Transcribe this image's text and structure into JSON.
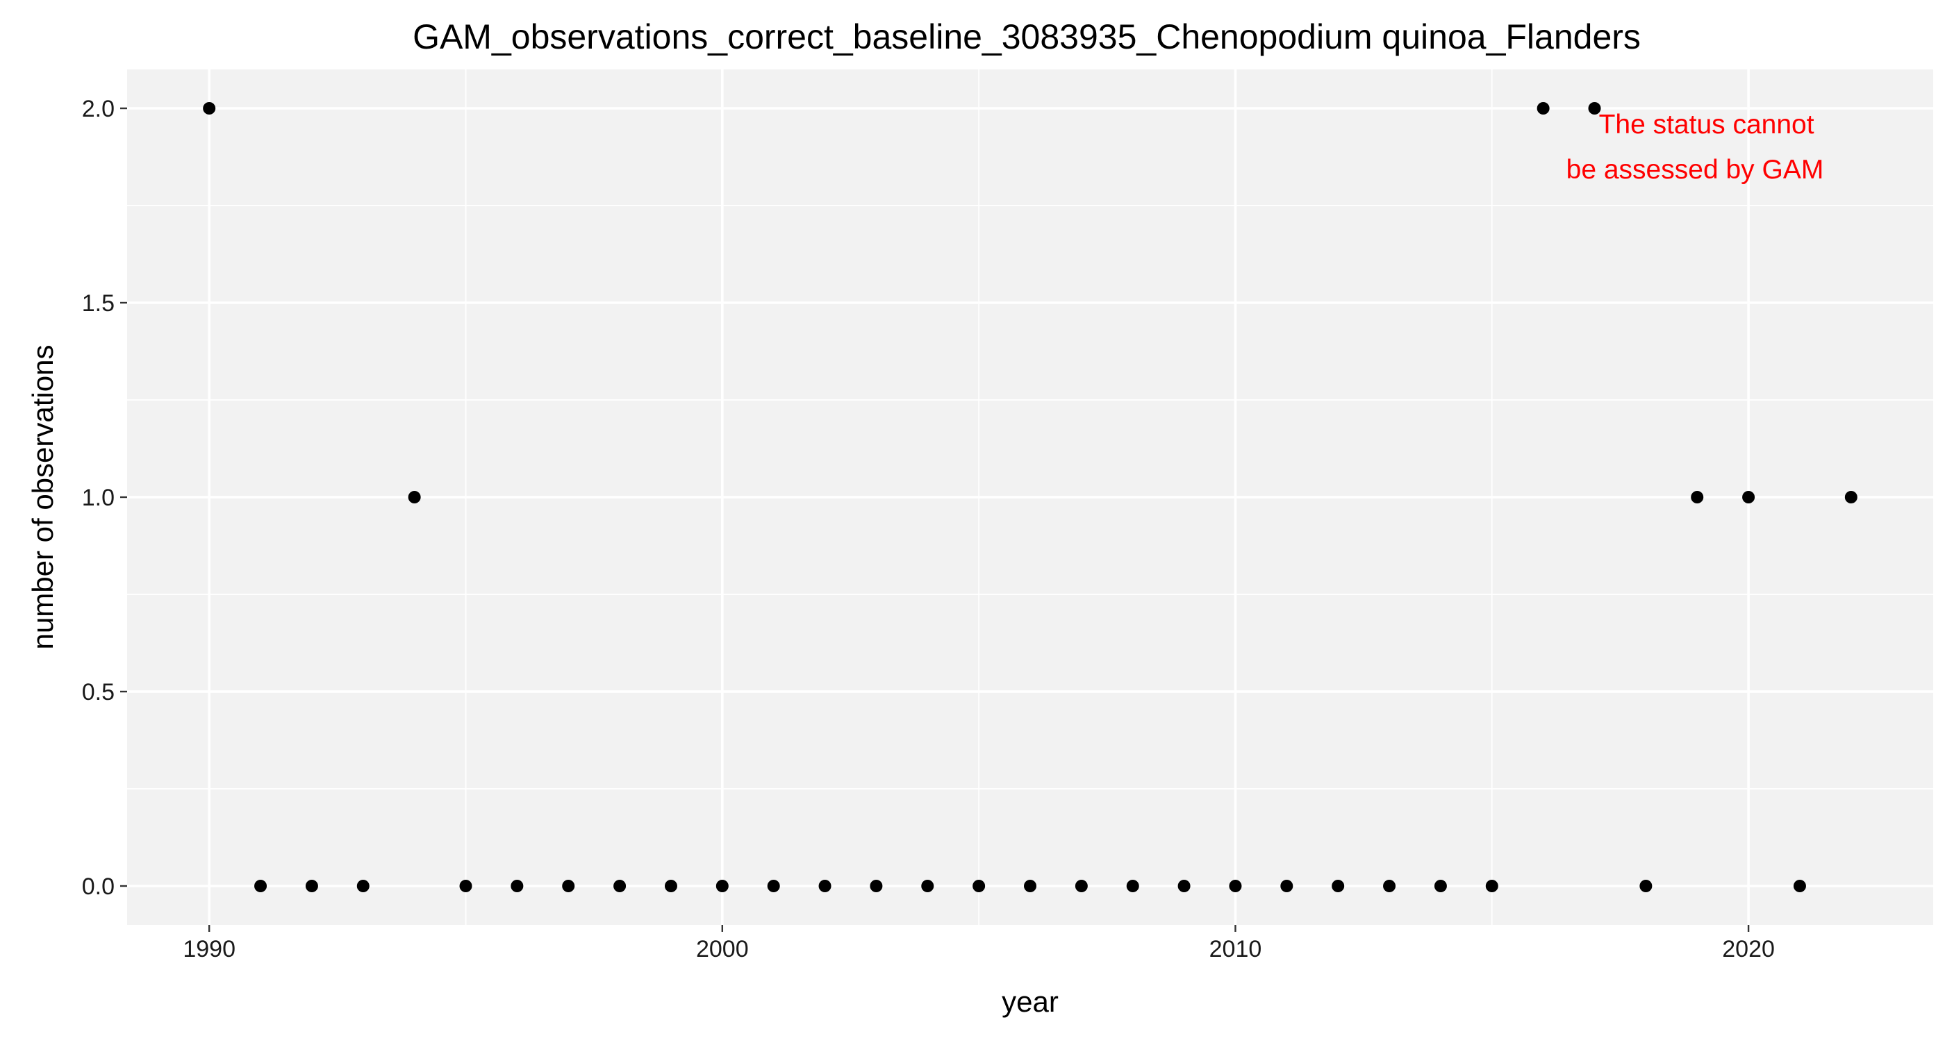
{
  "chart_data": {
    "type": "scatter",
    "title": "GAM_observations_correct_baseline_3083935_Chenopodium quinoa_Flanders",
    "xlabel": "year",
    "ylabel": "number of observations",
    "xlim": [
      1988.4,
      2023.6
    ],
    "ylim": [
      -0.1,
      2.1
    ],
    "x_ticks": [
      1990,
      2000,
      2010,
      2020
    ],
    "y_ticks": [
      0.0,
      0.5,
      1.0,
      1.5,
      2.0
    ],
    "y_tick_labels": [
      "0.0",
      "0.5",
      "1.0",
      "1.5",
      "2.0"
    ],
    "grid": true,
    "point_color": "#000000",
    "panel_background": "#f2f2f2",
    "points": [
      {
        "x": 1990,
        "y": 2
      },
      {
        "x": 1991,
        "y": 0
      },
      {
        "x": 1992,
        "y": 0
      },
      {
        "x": 1993,
        "y": 0
      },
      {
        "x": 1994,
        "y": 1
      },
      {
        "x": 1995,
        "y": 0
      },
      {
        "x": 1996,
        "y": 0
      },
      {
        "x": 1997,
        "y": 0
      },
      {
        "x": 1998,
        "y": 0
      },
      {
        "x": 1999,
        "y": 0
      },
      {
        "x": 2000,
        "y": 0
      },
      {
        "x": 2001,
        "y": 0
      },
      {
        "x": 2002,
        "y": 0
      },
      {
        "x": 2003,
        "y": 0
      },
      {
        "x": 2004,
        "y": 0
      },
      {
        "x": 2005,
        "y": 0
      },
      {
        "x": 2006,
        "y": 0
      },
      {
        "x": 2007,
        "y": 0
      },
      {
        "x": 2008,
        "y": 0
      },
      {
        "x": 2009,
        "y": 0
      },
      {
        "x": 2010,
        "y": 0
      },
      {
        "x": 2011,
        "y": 0
      },
      {
        "x": 2012,
        "y": 0
      },
      {
        "x": 2013,
        "y": 0
      },
      {
        "x": 2014,
        "y": 0
      },
      {
        "x": 2015,
        "y": 0
      },
      {
        "x": 2016,
        "y": 2
      },
      {
        "x": 2017,
        "y": 2
      },
      {
        "x": 2018,
        "y": 0
      },
      {
        "x": 2019,
        "y": 1
      },
      {
        "x": 2020,
        "y": 1
      },
      {
        "x": 2021,
        "y": 0
      },
      {
        "x": 2022,
        "y": 1
      }
    ],
    "annotation": {
      "lines": [
        "The status cannot",
        "be assessed by GAM"
      ],
      "color": "#ff0000"
    }
  }
}
